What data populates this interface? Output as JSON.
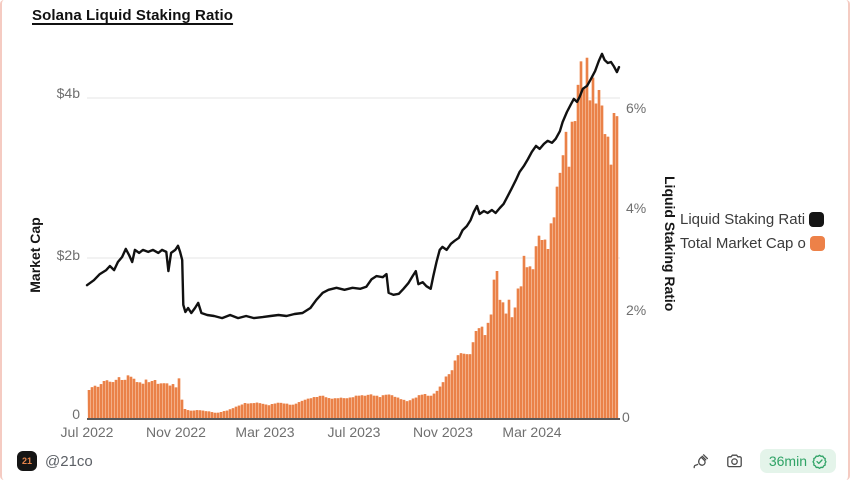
{
  "title": "Solana Liquid Staking Ratio",
  "footer": {
    "logo_text": "21",
    "handle": "@21co",
    "refresh_age": "36min"
  },
  "chart_data": {
    "type": "combo",
    "title": "Solana Liquid Staking Ratio",
    "grid": "horizontal-left-axis-only",
    "left_axis": {
      "label": "Market Cap",
      "ticks": [
        "0",
        "$2b",
        "$4b"
      ],
      "range": [
        0,
        4.7
      ],
      "unit": "$ billions"
    },
    "right_axis": {
      "label": "Liquid Staking Ratio",
      "ticks": [
        "0",
        "2%",
        "4%",
        "6%"
      ],
      "range": [
        0,
        7.3
      ],
      "unit": "%"
    },
    "x_ticks": [
      "Jul 2022",
      "Nov 2022",
      "Mar 2023",
      "Jul 2023",
      "Nov 2023",
      "Mar 2024"
    ],
    "legend": [
      {
        "label": "Liquid Staking Rati",
        "color": "#151515",
        "type": "line"
      },
      {
        "label": "Total Market Cap o",
        "color": "#ED8148",
        "type": "bar"
      }
    ],
    "colors": {
      "line": "#111111",
      "bar": "#EA8148",
      "bar_fill": "#F5AE85",
      "grid": "#ebebeb",
      "axis": "#222222"
    },
    "series": [
      {
        "name": "Liquid Staking Ratio",
        "type": "line",
        "axis": "right",
        "unit": "%",
        "points": [
          [
            0,
            2.53
          ],
          [
            0.013,
            2.63
          ],
          [
            0.024,
            2.75
          ],
          [
            0.036,
            2.83
          ],
          [
            0.043,
            2.91
          ],
          [
            0.051,
            2.83
          ],
          [
            0.058,
            2.99
          ],
          [
            0.066,
            3.09
          ],
          [
            0.073,
            3.25
          ],
          [
            0.079,
            3.13
          ],
          [
            0.085,
            2.99
          ],
          [
            0.09,
            3.23
          ],
          [
            0.098,
            3.17
          ],
          [
            0.105,
            3.23
          ],
          [
            0.115,
            3.19
          ],
          [
            0.124,
            3.23
          ],
          [
            0.134,
            3.17
          ],
          [
            0.141,
            3.23
          ],
          [
            0.149,
            3.19
          ],
          [
            0.153,
            2.81
          ],
          [
            0.158,
            3.17
          ],
          [
            0.166,
            3.23
          ],
          [
            0.171,
            3.31
          ],
          [
            0.175,
            3.19
          ],
          [
            0.179,
            3.03
          ],
          [
            0.181,
            2.14
          ],
          [
            0.185,
            2.0
          ],
          [
            0.19,
            2.08
          ],
          [
            0.196,
            1.98
          ],
          [
            0.203,
            2.08
          ],
          [
            0.209,
            2.18
          ],
          [
            0.215,
            1.98
          ],
          [
            0.226,
            1.94
          ],
          [
            0.239,
            1.92
          ],
          [
            0.254,
            1.88
          ],
          [
            0.269,
            1.94
          ],
          [
            0.284,
            1.88
          ],
          [
            0.299,
            1.92
          ],
          [
            0.314,
            1.88
          ],
          [
            0.33,
            1.9
          ],
          [
            0.345,
            1.92
          ],
          [
            0.36,
            1.94
          ],
          [
            0.375,
            1.92
          ],
          [
            0.39,
            1.96
          ],
          [
            0.405,
            1.98
          ],
          [
            0.42,
            2.08
          ],
          [
            0.431,
            2.24
          ],
          [
            0.443,
            2.38
          ],
          [
            0.454,
            2.44
          ],
          [
            0.469,
            2.48
          ],
          [
            0.484,
            2.44
          ],
          [
            0.499,
            2.48
          ],
          [
            0.514,
            2.46
          ],
          [
            0.525,
            2.5
          ],
          [
            0.535,
            2.65
          ],
          [
            0.544,
            2.71
          ],
          [
            0.556,
            2.69
          ],
          [
            0.563,
            2.75
          ],
          [
            0.567,
            2.38
          ],
          [
            0.576,
            2.34
          ],
          [
            0.586,
            2.36
          ],
          [
            0.595,
            2.46
          ],
          [
            0.604,
            2.57
          ],
          [
            0.612,
            2.71
          ],
          [
            0.618,
            2.81
          ],
          [
            0.623,
            2.55
          ],
          [
            0.631,
            2.59
          ],
          [
            0.638,
            2.51
          ],
          [
            0.646,
            2.46
          ],
          [
            0.651,
            2.71
          ],
          [
            0.657,
            2.99
          ],
          [
            0.663,
            3.23
          ],
          [
            0.668,
            3.29
          ],
          [
            0.676,
            3.23
          ],
          [
            0.684,
            3.35
          ],
          [
            0.691,
            3.41
          ],
          [
            0.699,
            3.47
          ],
          [
            0.706,
            3.62
          ],
          [
            0.714,
            3.7
          ],
          [
            0.721,
            3.82
          ],
          [
            0.727,
            3.98
          ],
          [
            0.733,
            4.1
          ],
          [
            0.738,
            3.94
          ],
          [
            0.746,
            4.0
          ],
          [
            0.753,
            3.96
          ],
          [
            0.761,
            4.02
          ],
          [
            0.768,
            3.96
          ],
          [
            0.776,
            4.06
          ],
          [
            0.783,
            4.14
          ],
          [
            0.791,
            4.3
          ],
          [
            0.798,
            4.44
          ],
          [
            0.806,
            4.61
          ],
          [
            0.813,
            4.77
          ],
          [
            0.821,
            4.89
          ],
          [
            0.829,
            5.03
          ],
          [
            0.836,
            5.17
          ],
          [
            0.844,
            5.29
          ],
          [
            0.851,
            5.23
          ],
          [
            0.859,
            5.33
          ],
          [
            0.866,
            5.39
          ],
          [
            0.874,
            5.35
          ],
          [
            0.881,
            5.43
          ],
          [
            0.889,
            5.58
          ],
          [
            0.894,
            5.76
          ],
          [
            0.902,
            5.96
          ],
          [
            0.91,
            6.12
          ],
          [
            0.915,
            6.22
          ],
          [
            0.921,
            6.16
          ],
          [
            0.926,
            6.26
          ],
          [
            0.932,
            6.42
          ],
          [
            0.94,
            6.48
          ],
          [
            0.947,
            6.61
          ],
          [
            0.955,
            6.77
          ],
          [
            0.962,
            6.97
          ],
          [
            0.968,
            7.11
          ],
          [
            0.973,
            6.99
          ],
          [
            0.979,
            6.93
          ],
          [
            0.985,
            6.95
          ],
          [
            0.99,
            6.87
          ],
          [
            0.996,
            6.75
          ],
          [
            1,
            6.85
          ]
        ]
      },
      {
        "name": "Total Market Cap",
        "type": "bar",
        "axis": "left",
        "unit": "$b",
        "points": [
          [
            0.006,
            0.35
          ],
          [
            0.013,
            0.41
          ],
          [
            0.021,
            0.38
          ],
          [
            0.028,
            0.45
          ],
          [
            0.038,
            0.48
          ],
          [
            0.047,
            0.43
          ],
          [
            0.055,
            0.48
          ],
          [
            0.062,
            0.51
          ],
          [
            0.07,
            0.46
          ],
          [
            0.077,
            0.54
          ],
          [
            0.085,
            0.5
          ],
          [
            0.094,
            0.45
          ],
          [
            0.104,
            0.43
          ],
          [
            0.111,
            0.48
          ],
          [
            0.119,
            0.44
          ],
          [
            0.126,
            0.48
          ],
          [
            0.136,
            0.41
          ],
          [
            0.143,
            0.45
          ],
          [
            0.151,
            0.43
          ],
          [
            0.158,
            0.4
          ],
          [
            0.164,
            0.43
          ],
          [
            0.169,
            0.35
          ],
          [
            0.173,
            0.5
          ],
          [
            0.177,
            0.29
          ],
          [
            0.181,
            0.13
          ],
          [
            0.188,
            0.1
          ],
          [
            0.198,
            0.09
          ],
          [
            0.209,
            0.1
          ],
          [
            0.22,
            0.09
          ],
          [
            0.232,
            0.08
          ],
          [
            0.243,
            0.06
          ],
          [
            0.254,
            0.08
          ],
          [
            0.266,
            0.1
          ],
          [
            0.277,
            0.13
          ],
          [
            0.288,
            0.16
          ],
          [
            0.298,
            0.19
          ],
          [
            0.307,
            0.18
          ],
          [
            0.318,
            0.19
          ],
          [
            0.33,
            0.18
          ],
          [
            0.341,
            0.16
          ],
          [
            0.352,
            0.18
          ],
          [
            0.363,
            0.19
          ],
          [
            0.375,
            0.18
          ],
          [
            0.386,
            0.16
          ],
          [
            0.397,
            0.19
          ],
          [
            0.409,
            0.23
          ],
          [
            0.42,
            0.25
          ],
          [
            0.431,
            0.26
          ],
          [
            0.443,
            0.28
          ],
          [
            0.454,
            0.25
          ],
          [
            0.465,
            0.24
          ],
          [
            0.476,
            0.25
          ],
          [
            0.488,
            0.25
          ],
          [
            0.499,
            0.26
          ],
          [
            0.51,
            0.28
          ],
          [
            0.522,
            0.28
          ],
          [
            0.531,
            0.3
          ],
          [
            0.54,
            0.28
          ],
          [
            0.55,
            0.26
          ],
          [
            0.559,
            0.29
          ],
          [
            0.567,
            0.3
          ],
          [
            0.574,
            0.28
          ],
          [
            0.584,
            0.25
          ],
          [
            0.593,
            0.23
          ],
          [
            0.603,
            0.21
          ],
          [
            0.612,
            0.24
          ],
          [
            0.62,
            0.26
          ],
          [
            0.627,
            0.29
          ],
          [
            0.635,
            0.3
          ],
          [
            0.642,
            0.28
          ],
          [
            0.65,
            0.28
          ],
          [
            0.655,
            0.33
          ],
          [
            0.661,
            0.35
          ],
          [
            0.668,
            0.44
          ],
          [
            0.676,
            0.53
          ],
          [
            0.684,
            0.58
          ],
          [
            0.691,
            0.68
          ],
          [
            0.697,
            0.79
          ],
          [
            0.702,
            0.73
          ],
          [
            0.708,
            0.85
          ],
          [
            0.714,
            0.79
          ],
          [
            0.719,
            0.83
          ],
          [
            0.725,
            0.95
          ],
          [
            0.731,
            1.04
          ],
          [
            0.736,
            1.13
          ],
          [
            0.742,
            1.06
          ],
          [
            0.748,
            1.1
          ],
          [
            0.753,
            1.16
          ],
          [
            0.759,
            1.35
          ],
          [
            0.765,
            1.73
          ],
          [
            0.77,
            1.79
          ],
          [
            0.776,
            1.48
          ],
          [
            0.781,
            1.35
          ],
          [
            0.787,
            1.39
          ],
          [
            0.793,
            1.48
          ],
          [
            0.798,
            1.33
          ],
          [
            0.804,
            1.35
          ],
          [
            0.81,
            1.54
          ],
          [
            0.815,
            1.6
          ],
          [
            0.821,
            1.91
          ],
          [
            0.827,
            2.04
          ],
          [
            0.832,
            1.88
          ],
          [
            0.838,
            1.95
          ],
          [
            0.844,
            2.1
          ],
          [
            0.849,
            2.16
          ],
          [
            0.855,
            2.23
          ],
          [
            0.861,
            2.13
          ],
          [
            0.866,
            2.29
          ],
          [
            0.872,
            2.41
          ],
          [
            0.877,
            2.6
          ],
          [
            0.883,
            2.79
          ],
          [
            0.889,
            2.91
          ],
          [
            0.894,
            3.23
          ],
          [
            0.898,
            3.6
          ],
          [
            0.902,
            3.35
          ],
          [
            0.908,
            3.48
          ],
          [
            0.913,
            3.73
          ],
          [
            0.919,
            3.91
          ],
          [
            0.925,
            4.04
          ],
          [
            0.928,
            4.29
          ],
          [
            0.932,
            4.04
          ],
          [
            0.938,
            4.35
          ],
          [
            0.943,
            4.45
          ],
          [
            0.949,
            4.23
          ],
          [
            0.955,
            4.1
          ],
          [
            0.96,
            3.98
          ],
          [
            0.966,
            3.79
          ],
          [
            0.972,
            3.66
          ],
          [
            0.977,
            3.5
          ],
          [
            0.983,
            3.39
          ],
          [
            0.989,
            3.66
          ],
          [
            0.994,
            3.85
          ],
          [
            1,
            3.89
          ]
        ]
      }
    ]
  }
}
